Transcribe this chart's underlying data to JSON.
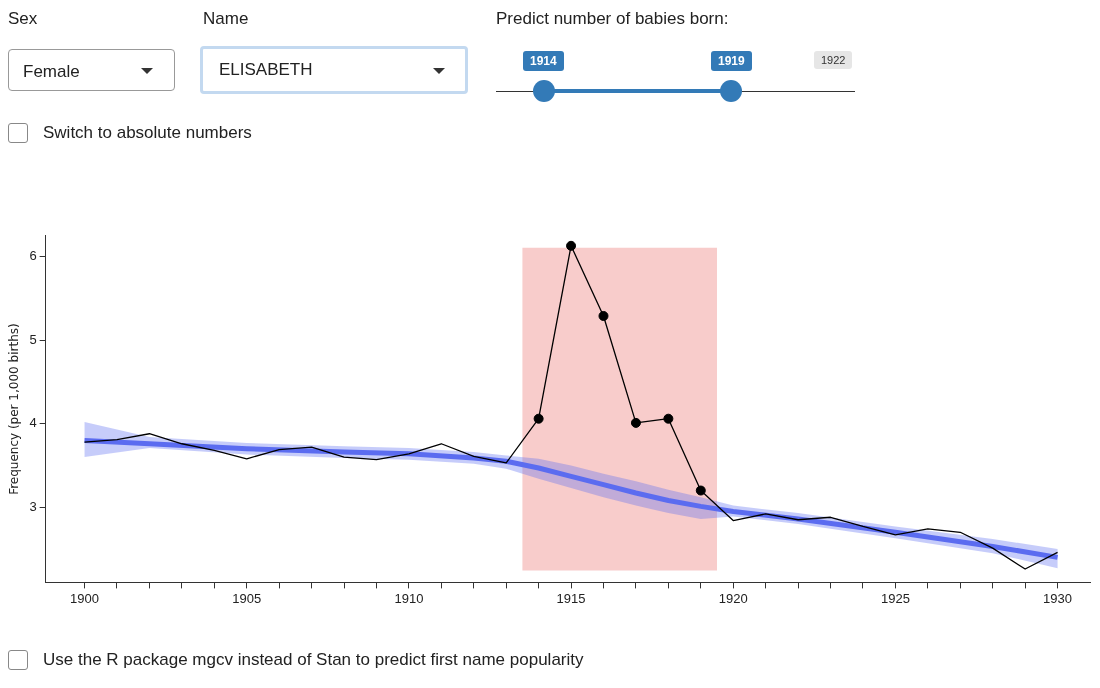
{
  "chart_data": {
    "type": "line",
    "ylabel": "Frequency (per 1,000 births)",
    "annotations": [
      "Sex",
      "Female",
      "Name",
      "ELISABETH",
      "Predict number of babies born:",
      "1914",
      "1919",
      "1922",
      "Switch to absolute numbers",
      "Use the R package mgcv instead of Stan to predict first name popularity"
    ],
    "xlim": [
      1898.8,
      1931
    ],
    "ylim": [
      2.1,
      6.25
    ],
    "xticks": [
      1900,
      {
        "value": 1901,
        "label": null
      },
      {
        "value": 1902,
        "label": null
      },
      {
        "value": 1903,
        "label": null
      },
      {
        "value": 1904,
        "label": null
      },
      1905,
      {
        "value": 1906,
        "label": null
      },
      {
        "value": 1907,
        "label": null
      },
      {
        "value": 1908,
        "label": null
      },
      {
        "value": 1909,
        "label": null
      },
      1910,
      {
        "value": 1911,
        "label": null
      },
      {
        "value": 1912,
        "label": null
      },
      {
        "value": 1913,
        "label": null
      },
      {
        "value": 1914,
        "label": null
      },
      1915,
      {
        "value": 1916,
        "label": null
      },
      {
        "value": 1917,
        "label": null
      },
      {
        "value": 1918,
        "label": null
      },
      {
        "value": 1919,
        "label": null
      },
      1920,
      {
        "value": 1921,
        "label": null
      },
      {
        "value": 1922,
        "label": null
      },
      {
        "value": 1923,
        "label": null
      },
      {
        "value": 1924,
        "label": null
      },
      1925,
      {
        "value": 1926,
        "label": null
      },
      {
        "value": 1927,
        "label": null
      },
      {
        "value": 1928,
        "label": null
      },
      {
        "value": 1929,
        "label": null
      },
      1930
    ],
    "yticks": [
      3,
      4,
      5,
      6
    ],
    "grid": false,
    "legend": false,
    "bands": [
      {
        "axis": "x",
        "from": 1913.5,
        "to": 1919.5,
        "color": "#f8cccb"
      }
    ],
    "series": [
      {
        "color": "#5b6cf0",
        "marker": "none",
        "x": [
          1900,
          1902,
          1905,
          1908,
          1910,
          1912,
          1913,
          1914,
          1915,
          1916,
          1917,
          1918,
          1919,
          1920,
          1922,
          1925,
          1928,
          1930
        ],
        "values": [
          3.8,
          3.76,
          3.7,
          3.66,
          3.64,
          3.59,
          3.55,
          3.47,
          3.37,
          3.27,
          3.17,
          3.08,
          3.01,
          2.95,
          2.86,
          2.7,
          2.53,
          2.4
        ],
        "lower": [
          3.6,
          3.71,
          3.63,
          3.59,
          3.57,
          3.52,
          3.46,
          3.34,
          3.23,
          3.12,
          3.02,
          2.93,
          2.86,
          2.89,
          2.8,
          2.63,
          2.45,
          2.27
        ],
        "upper": [
          4.02,
          3.84,
          3.77,
          3.73,
          3.71,
          3.66,
          3.62,
          3.58,
          3.5,
          3.4,
          3.31,
          3.21,
          3.12,
          3.02,
          2.93,
          2.77,
          2.62,
          2.5
        ]
      },
      {
        "color": "#000000",
        "marker": "none",
        "line_style": "solid",
        "x": [
          1900,
          1901,
          1902,
          1903,
          1904,
          1905,
          1906,
          1907,
          1908,
          1909,
          1910,
          1911,
          1912,
          1913,
          1914,
          1915,
          1916,
          1917,
          1918,
          1919,
          1920,
          1921,
          1922,
          1923,
          1924,
          1925,
          1926,
          1927,
          1928,
          1929,
          1930
        ],
        "values": [
          3.78,
          3.81,
          3.88,
          3.76,
          3.68,
          3.58,
          3.69,
          3.72,
          3.6,
          3.57,
          3.64,
          3.76,
          3.61,
          3.53,
          4.06,
          6.13,
          5.29,
          4.01,
          4.06,
          3.2,
          2.84,
          2.92,
          2.85,
          2.88,
          2.77,
          2.67,
          2.74,
          2.7,
          2.51,
          2.26,
          2.46
        ]
      },
      {
        "type": "scatter",
        "color": "#000000",
        "marker": "circle",
        "x": [
          1914,
          1915,
          1916,
          1917,
          1918,
          1919
        ],
        "values": [
          4.06,
          6.13,
          5.29,
          4.01,
          4.06,
          3.2
        ]
      }
    ]
  }
}
